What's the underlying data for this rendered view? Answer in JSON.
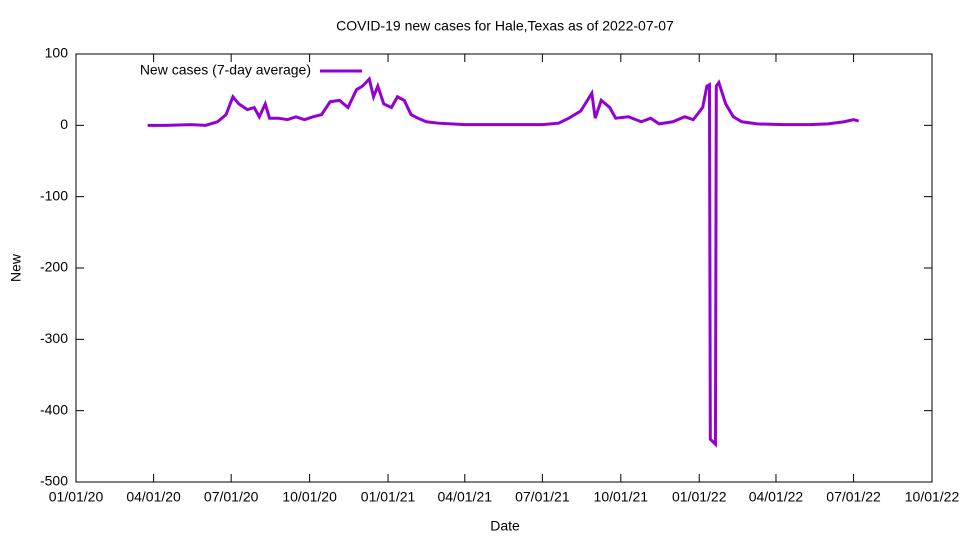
{
  "chart_data": {
    "type": "line",
    "title": "COVID-19 new cases for Hale,Texas as of 2022-07-07",
    "x_label": "Date",
    "y_label": "New",
    "x": [
      "2020-03-25",
      "2020-04-15",
      "2020-05-15",
      "2020-06-01",
      "2020-06-15",
      "2020-06-25",
      "2020-07-03",
      "2020-07-10",
      "2020-07-20",
      "2020-07-28",
      "2020-08-03",
      "2020-08-10",
      "2020-08-15",
      "2020-08-25",
      "2020-09-05",
      "2020-09-15",
      "2020-09-25",
      "2020-10-05",
      "2020-10-15",
      "2020-10-25",
      "2020-11-05",
      "2020-11-15",
      "2020-11-25",
      "2020-12-02",
      "2020-12-10",
      "2020-12-15",
      "2020-12-20",
      "2020-12-27",
      "2021-01-05",
      "2021-01-12",
      "2021-01-20",
      "2021-01-28",
      "2021-02-05",
      "2021-02-15",
      "2021-03-01",
      "2021-04-01",
      "2021-05-01",
      "2021-06-01",
      "2021-07-01",
      "2021-07-20",
      "2021-08-01",
      "2021-08-15",
      "2021-08-28",
      "2021-09-01",
      "2021-09-08",
      "2021-09-18",
      "2021-09-25",
      "2021-10-10",
      "2021-10-25",
      "2021-11-05",
      "2021-11-15",
      "2021-12-01",
      "2021-12-15",
      "2021-12-25",
      "2022-01-05",
      "2022-01-10",
      "2022-01-13",
      "2022-01-14",
      "2022-01-20",
      "2022-01-21",
      "2022-01-24",
      "2022-02-01",
      "2022-02-10",
      "2022-02-20",
      "2022-03-10",
      "2022-04-10",
      "2022-05-10",
      "2022-06-01",
      "2022-06-20",
      "2022-07-01",
      "2022-07-07"
    ],
    "series": [
      {
        "name": "New cases (7-day average)",
        "color": "#9400d3",
        "values": [
          0,
          0,
          1,
          0,
          5,
          15,
          40,
          30,
          22,
          25,
          12,
          30,
          10,
          10,
          8,
          12,
          8,
          12,
          15,
          33,
          35,
          25,
          50,
          55,
          65,
          40,
          55,
          30,
          25,
          40,
          35,
          15,
          10,
          5,
          3,
          1,
          1,
          1,
          1,
          3,
          10,
          20,
          45,
          10,
          35,
          25,
          10,
          12,
          5,
          10,
          2,
          5,
          12,
          8,
          25,
          55,
          57,
          -440,
          -447,
          55,
          60,
          30,
          12,
          5,
          2,
          1,
          1,
          2,
          5,
          8,
          6
        ]
      }
    ],
    "xlim": [
      "2020-01-01",
      "2022-10-01"
    ],
    "xticks": [
      {
        "value": "2020-01-01",
        "label": "01/01/20"
      },
      {
        "value": "2020-04-01",
        "label": "04/01/20"
      },
      {
        "value": "2020-07-01",
        "label": "07/01/20"
      },
      {
        "value": "2020-10-01",
        "label": "10/01/20"
      },
      {
        "value": "2021-01-01",
        "label": "01/01/21"
      },
      {
        "value": "2021-04-01",
        "label": "04/01/21"
      },
      {
        "value": "2021-07-01",
        "label": "07/01/21"
      },
      {
        "value": "2021-10-01",
        "label": "10/01/21"
      },
      {
        "value": "2022-01-01",
        "label": "01/01/22"
      },
      {
        "value": "2022-04-01",
        "label": "04/01/22"
      },
      {
        "value": "2022-07-01",
        "label": "07/01/22"
      },
      {
        "value": "2022-10-01",
        "label": "10/01/22"
      }
    ],
    "ylim": [
      -500,
      100
    ],
    "yticks": [
      -500,
      -400,
      -300,
      -200,
      -100,
      0,
      100
    ],
    "legend": "top-left"
  }
}
